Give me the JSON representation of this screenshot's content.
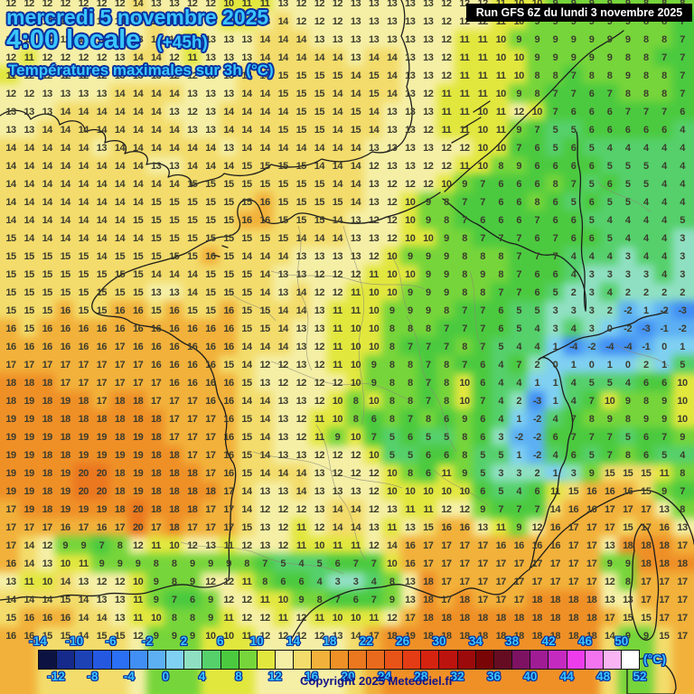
{
  "header": {
    "date_line": "mercredi 5 novembre 2025",
    "time_line": "4:00 locale",
    "offset_label": "(+45h)",
    "subtitle": "Températures maximales sur 3h (°C)",
    "run_info": "Run GFS 6Z du lundi 3 novembre 2025",
    "text_color": "#39c6ff",
    "outline_color": "#0a2f9e"
  },
  "footer": {
    "copyright": "Copyright 2025 Meteociel.fr",
    "unit_label": "(°C)"
  },
  "scale": {
    "min": -14,
    "max": 52,
    "step": 2,
    "top_labels": [
      -14,
      -10,
      -6,
      -2,
      2,
      6,
      10,
      14,
      18,
      22,
      26,
      30,
      34,
      38,
      42,
      46,
      50
    ],
    "bottom_labels": [
      -12,
      -8,
      -4,
      0,
      4,
      8,
      12,
      16,
      20,
      24,
      28,
      32,
      36,
      40,
      44,
      48,
      52
    ],
    "colors": [
      "#0c1342",
      "#152a8a",
      "#1d42b6",
      "#2458e0",
      "#2b6ff5",
      "#418ff5",
      "#5cb0f3",
      "#7fd0f2",
      "#8fe0c2",
      "#55d06b",
      "#4bca3f",
      "#76d53a",
      "#e2e73e",
      "#f5efa6",
      "#f3dc6b",
      "#f2b13a",
      "#ef9027",
      "#eb771f",
      "#e96a1c",
      "#e85317",
      "#e43c14",
      "#d62310",
      "#bc130e",
      "#9c0a0b",
      "#7a0506",
      "#650c22",
      "#7d1263",
      "#9f1c94",
      "#c52ac0",
      "#ec3cec",
      "#f474ef",
      "#f9b5f3",
      "#ffffff"
    ]
  },
  "map": {
    "number_color": "#3c3c2e",
    "grid_rows": [
      [
        12,
        12,
        12,
        12,
        12,
        12,
        12,
        14,
        13,
        13,
        12,
        12,
        10,
        11,
        11,
        13,
        12,
        12,
        12,
        13,
        13,
        13,
        13,
        13,
        12,
        12,
        12,
        11,
        10,
        10,
        9,
        9,
        9,
        9,
        9,
        8,
        8,
        8
      ],
      [
        13,
        13,
        12,
        12,
        12,
        12,
        13,
        13,
        14,
        13,
        12,
        12,
        11,
        11,
        13,
        14,
        12,
        12,
        12,
        13,
        13,
        13,
        13,
        13,
        12,
        12,
        12,
        11,
        10,
        9,
        9,
        9,
        9,
        9,
        9,
        8,
        8,
        7
      ],
      [
        12,
        12,
        12,
        12,
        12,
        12,
        13,
        13,
        14,
        12,
        11,
        13,
        13,
        13,
        14,
        14,
        14,
        13,
        13,
        13,
        13,
        13,
        13,
        13,
        12,
        11,
        11,
        10,
        9,
        9,
        9,
        9,
        9,
        9,
        9,
        8,
        8,
        7
      ],
      [
        12,
        11,
        12,
        12,
        12,
        12,
        13,
        14,
        14,
        12,
        11,
        13,
        13,
        13,
        14,
        14,
        14,
        14,
        14,
        13,
        14,
        14,
        13,
        13,
        12,
        11,
        11,
        10,
        10,
        9,
        9,
        9,
        9,
        9,
        8,
        8,
        7,
        7
      ],
      [
        11,
        12,
        12,
        12,
        12,
        12,
        13,
        13,
        13,
        12,
        12,
        13,
        13,
        14,
        14,
        15,
        15,
        15,
        15,
        14,
        15,
        14,
        13,
        13,
        12,
        11,
        11,
        11,
        10,
        8,
        8,
        7,
        8,
        8,
        9,
        8,
        8,
        7
      ],
      [
        12,
        12,
        13,
        13,
        13,
        13,
        14,
        14,
        14,
        14,
        13,
        13,
        13,
        14,
        14,
        15,
        15,
        15,
        14,
        14,
        15,
        14,
        13,
        12,
        11,
        11,
        11,
        10,
        9,
        8,
        7,
        7,
        6,
        7,
        8,
        8,
        8,
        7
      ],
      [
        13,
        13,
        13,
        14,
        14,
        14,
        14,
        14,
        14,
        13,
        12,
        13,
        14,
        14,
        14,
        14,
        15,
        15,
        14,
        15,
        14,
        13,
        13,
        13,
        11,
        11,
        10,
        11,
        12,
        10,
        7,
        6,
        6,
        6,
        7,
        7,
        7,
        6
      ],
      [
        13,
        13,
        14,
        14,
        14,
        14,
        14,
        14,
        14,
        14,
        13,
        13,
        14,
        14,
        14,
        15,
        15,
        15,
        14,
        15,
        14,
        13,
        13,
        12,
        11,
        11,
        10,
        11,
        9,
        7,
        5,
        5,
        6,
        6,
        6,
        6,
        6,
        4
      ],
      [
        14,
        14,
        14,
        14,
        14,
        13,
        14,
        14,
        14,
        14,
        14,
        14,
        13,
        14,
        14,
        14,
        14,
        14,
        14,
        14,
        13,
        13,
        13,
        13,
        12,
        12,
        10,
        10,
        7,
        6,
        5,
        6,
        5,
        4,
        4,
        4,
        4,
        4
      ],
      [
        14,
        14,
        14,
        14,
        14,
        14,
        14,
        14,
        13,
        13,
        14,
        14,
        14,
        15,
        15,
        15,
        15,
        14,
        14,
        14,
        12,
        13,
        13,
        12,
        12,
        11,
        10,
        8,
        9,
        6,
        6,
        6,
        6,
        5,
        5,
        5,
        4,
        4
      ],
      [
        14,
        14,
        14,
        14,
        14,
        14,
        14,
        14,
        14,
        14,
        15,
        15,
        15,
        15,
        15,
        15,
        15,
        15,
        14,
        14,
        13,
        12,
        12,
        12,
        10,
        9,
        7,
        6,
        6,
        6,
        8,
        7,
        5,
        6,
        5,
        5,
        4,
        4
      ],
      [
        14,
        14,
        14,
        14,
        14,
        14,
        14,
        14,
        15,
        15,
        15,
        15,
        15,
        15,
        16,
        15,
        15,
        15,
        15,
        14,
        13,
        12,
        10,
        9,
        8,
        7,
        7,
        6,
        6,
        8,
        6,
        5,
        6,
        5,
        5,
        4,
        4,
        4
      ],
      [
        14,
        14,
        14,
        14,
        14,
        14,
        14,
        15,
        15,
        15,
        15,
        15,
        15,
        16,
        16,
        15,
        15,
        15,
        14,
        13,
        12,
        12,
        10,
        9,
        8,
        7,
        6,
        6,
        6,
        7,
        6,
        6,
        5,
        4,
        4,
        4,
        4,
        5
      ],
      [
        15,
        14,
        14,
        14,
        14,
        14,
        14,
        14,
        15,
        15,
        15,
        15,
        15,
        15,
        15,
        15,
        14,
        14,
        14,
        13,
        13,
        12,
        10,
        10,
        9,
        8,
        7,
        7,
        7,
        6,
        7,
        6,
        6,
        5,
        4,
        4,
        4,
        3
      ],
      [
        15,
        15,
        15,
        15,
        15,
        14,
        15,
        15,
        15,
        15,
        15,
        16,
        15,
        14,
        14,
        14,
        13,
        13,
        13,
        13,
        12,
        10,
        9,
        9,
        9,
        8,
        8,
        8,
        7,
        7,
        7,
        4,
        4,
        4,
        3,
        4,
        4,
        3
      ],
      [
        15,
        15,
        15,
        15,
        15,
        15,
        15,
        15,
        14,
        14,
        14,
        15,
        15,
        15,
        14,
        13,
        13,
        12,
        12,
        12,
        11,
        10,
        10,
        9,
        9,
        8,
        9,
        8,
        7,
        6,
        6,
        4,
        3,
        3,
        3,
        3,
        4,
        3
      ],
      [
        15,
        15,
        15,
        15,
        15,
        15,
        15,
        15,
        13,
        13,
        14,
        15,
        15,
        15,
        14,
        13,
        14,
        12,
        12,
        11,
        10,
        10,
        9,
        9,
        9,
        8,
        8,
        7,
        7,
        6,
        5,
        2,
        3,
        4,
        2,
        2,
        2,
        2
      ],
      [
        15,
        15,
        15,
        16,
        15,
        15,
        16,
        16,
        15,
        16,
        15,
        15,
        16,
        15,
        15,
        14,
        14,
        13,
        11,
        11,
        10,
        9,
        9,
        9,
        8,
        7,
        7,
        6,
        5,
        5,
        3,
        3,
        3,
        2,
        -2,
        1,
        -2,
        -3
      ],
      [
        16,
        15,
        16,
        16,
        16,
        16,
        16,
        16,
        16,
        16,
        16,
        16,
        16,
        15,
        15,
        14,
        13,
        13,
        11,
        10,
        10,
        8,
        8,
        8,
        7,
        7,
        7,
        6,
        5,
        4,
        3,
        4,
        3,
        0,
        -2,
        -3,
        -1,
        -2
      ],
      [
        16,
        16,
        16,
        16,
        16,
        16,
        17,
        16,
        16,
        16,
        16,
        16,
        16,
        14,
        14,
        14,
        13,
        12,
        11,
        10,
        10,
        8,
        7,
        7,
        7,
        8,
        7,
        5,
        4,
        4,
        1,
        -4,
        -2,
        -4,
        -4,
        -1,
        0,
        1
      ],
      [
        17,
        17,
        17,
        17,
        17,
        17,
        17,
        17,
        16,
        16,
        16,
        16,
        15,
        14,
        12,
        12,
        13,
        12,
        11,
        10,
        9,
        8,
        8,
        7,
        8,
        7,
        6,
        4,
        7,
        2,
        0,
        1,
        0,
        1,
        0,
        2,
        1,
        5
      ],
      [
        18,
        18,
        18,
        17,
        17,
        17,
        17,
        17,
        17,
        16,
        16,
        16,
        16,
        15,
        13,
        12,
        12,
        12,
        12,
        10,
        9,
        8,
        8,
        7,
        8,
        10,
        6,
        4,
        4,
        1,
        1,
        4,
        5,
        5,
        4,
        6,
        6,
        10
      ],
      [
        18,
        19,
        18,
        19,
        18,
        17,
        18,
        18,
        17,
        17,
        17,
        16,
        16,
        14,
        14,
        13,
        13,
        12,
        10,
        8,
        10,
        8,
        8,
        7,
        8,
        10,
        7,
        4,
        2,
        -3,
        1,
        4,
        7,
        10,
        9,
        8,
        9,
        10
      ],
      [
        19,
        19,
        18,
        18,
        18,
        18,
        18,
        18,
        18,
        17,
        17,
        17,
        16,
        15,
        14,
        13,
        12,
        11,
        10,
        8,
        6,
        8,
        7,
        8,
        6,
        9,
        6,
        4,
        1,
        -2,
        4,
        7,
        8,
        9,
        8,
        9,
        9,
        10
      ],
      [
        19,
        19,
        19,
        18,
        19,
        19,
        18,
        19,
        18,
        17,
        17,
        17,
        16,
        15,
        14,
        13,
        12,
        11,
        9,
        10,
        7,
        5,
        6,
        5,
        5,
        8,
        6,
        3,
        -2,
        -2,
        6,
        7,
        7,
        7,
        5,
        6,
        7,
        9
      ],
      [
        19,
        19,
        18,
        18,
        19,
        19,
        19,
        19,
        18,
        18,
        17,
        17,
        16,
        15,
        14,
        13,
        13,
        12,
        12,
        12,
        10,
        5,
        5,
        6,
        6,
        8,
        5,
        5,
        1,
        -2,
        4,
        6,
        5,
        7,
        8,
        6,
        5,
        4
      ],
      [
        19,
        19,
        18,
        19,
        20,
        20,
        18,
        19,
        18,
        18,
        18,
        17,
        16,
        15,
        14,
        14,
        14,
        13,
        12,
        12,
        12,
        10,
        8,
        6,
        11,
        9,
        5,
        3,
        3,
        2,
        1,
        3,
        9,
        15,
        15,
        15,
        11,
        8
      ],
      [
        19,
        19,
        18,
        19,
        20,
        20,
        18,
        19,
        18,
        18,
        18,
        18,
        17,
        14,
        13,
        13,
        14,
        13,
        13,
        13,
        12,
        10,
        10,
        10,
        10,
        10,
        6,
        5,
        4,
        6,
        11,
        15,
        16,
        16,
        16,
        15,
        9,
        7
      ],
      [
        17,
        19,
        18,
        19,
        19,
        19,
        18,
        20,
        18,
        18,
        18,
        17,
        17,
        14,
        12,
        12,
        12,
        13,
        14,
        14,
        12,
        13,
        11,
        11,
        12,
        12,
        9,
        7,
        7,
        7,
        14,
        16,
        16,
        17,
        17,
        17,
        13,
        8
      ],
      [
        17,
        17,
        17,
        16,
        17,
        16,
        17,
        20,
        17,
        18,
        17,
        17,
        17,
        15,
        13,
        12,
        11,
        12,
        14,
        14,
        13,
        11,
        13,
        15,
        16,
        16,
        13,
        11,
        9,
        12,
        16,
        17,
        17,
        17,
        15,
        17,
        16,
        13
      ],
      [
        17,
        14,
        12,
        9,
        9,
        7,
        8,
        12,
        11,
        10,
        12,
        13,
        11,
        12,
        13,
        12,
        11,
        10,
        11,
        11,
        12,
        14,
        16,
        17,
        17,
        17,
        17,
        16,
        16,
        16,
        16,
        17,
        17,
        13,
        18,
        18,
        18,
        17
      ],
      [
        16,
        14,
        13,
        10,
        11,
        9,
        9,
        9,
        8,
        8,
        9,
        9,
        9,
        8,
        7,
        5,
        4,
        5,
        6,
        7,
        7,
        10,
        16,
        17,
        17,
        17,
        17,
        17,
        17,
        17,
        17,
        17,
        17,
        9,
        9,
        18,
        18,
        18
      ],
      [
        13,
        11,
        10,
        14,
        13,
        12,
        12,
        10,
        9,
        8,
        9,
        12,
        12,
        11,
        8,
        6,
        6,
        4,
        3,
        3,
        4,
        8,
        13,
        18,
        17,
        17,
        17,
        17,
        17,
        17,
        17,
        17,
        17,
        12,
        8,
        17,
        17,
        17
      ],
      [
        14,
        14,
        14,
        15,
        14,
        13,
        13,
        11,
        9,
        7,
        6,
        9,
        12,
        12,
        11,
        10,
        9,
        8,
        7,
        6,
        7,
        9,
        13,
        18,
        17,
        18,
        17,
        17,
        17,
        18,
        18,
        18,
        18,
        13,
        13,
        17,
        17,
        17
      ],
      [
        15,
        16,
        16,
        16,
        14,
        14,
        13,
        11,
        10,
        8,
        8,
        9,
        11,
        12,
        12,
        11,
        12,
        11,
        10,
        10,
        11,
        12,
        17,
        18,
        18,
        18,
        18,
        18,
        18,
        18,
        18,
        18,
        18,
        17,
        15,
        15,
        17,
        17
      ],
      [
        16,
        16,
        15,
        15,
        14,
        15,
        15,
        12,
        9,
        9,
        9,
        10,
        10,
        11,
        12,
        12,
        12,
        12,
        13,
        14,
        17,
        18,
        19,
        18,
        18,
        18,
        18,
        18,
        18,
        18,
        18,
        18,
        18,
        14,
        9,
        9,
        15,
        17
      ]
    ]
  }
}
